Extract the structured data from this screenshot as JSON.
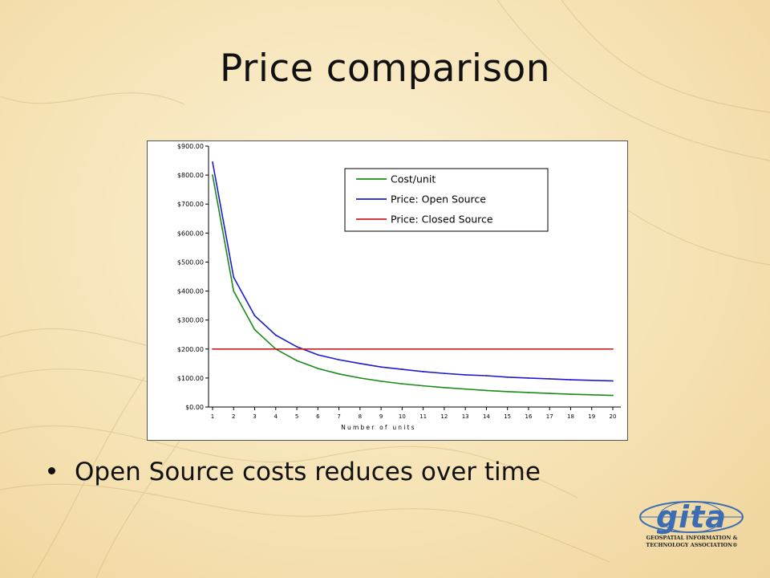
{
  "slide": {
    "title": "Price comparison",
    "bullet": "Open Source costs reduces over time"
  },
  "logo": {
    "name": "gita",
    "line1": "GEOSPATIAL INFORMATION &",
    "line2": "TECHNOLOGY ASSOCIATION®"
  },
  "chart_data": {
    "type": "line",
    "title": "",
    "xlabel": "Number of units",
    "ylabel": "",
    "x": [
      1,
      2,
      3,
      4,
      5,
      6,
      7,
      8,
      9,
      10,
      11,
      12,
      13,
      14,
      15,
      16,
      17,
      18,
      19,
      20
    ],
    "ylim": [
      0,
      900
    ],
    "yticks": [
      "$0.00",
      "$100.00",
      "$200.00",
      "$300.00",
      "$400.00",
      "$500.00",
      "$600.00",
      "$700.00",
      "$800.00",
      "$900.00"
    ],
    "legend_position": "top-right",
    "grid": false,
    "series": [
      {
        "name": "Cost/unit",
        "color": "#1a8a1a",
        "values": [
          800,
          400,
          267,
          200,
          160,
          133,
          114,
          100,
          89,
          80,
          73,
          67,
          62,
          57,
          53,
          50,
          47,
          44,
          42,
          40
        ]
      },
      {
        "name": "Price: Open Source",
        "color": "#1c1ccc",
        "values": [
          845,
          448,
          315,
          248,
          208,
          180,
          163,
          150,
          138,
          130,
          122,
          116,
          111,
          108,
          103,
          100,
          97,
          94,
          92,
          90
        ]
      },
      {
        "name": "Price: Closed Source",
        "color": "#cc1f1f",
        "values": [
          200,
          200,
          200,
          200,
          200,
          200,
          200,
          200,
          200,
          200,
          200,
          200,
          200,
          200,
          200,
          200,
          200,
          200,
          200,
          200
        ]
      }
    ]
  }
}
